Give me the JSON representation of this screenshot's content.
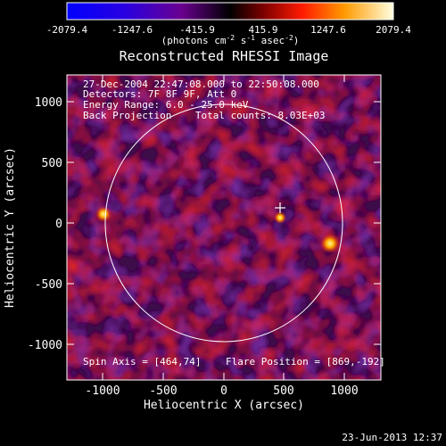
{
  "colorbar": {
    "ticks": [
      "-2079.4",
      "-1247.6",
      "-415.9",
      "415.9",
      "1247.6",
      "2079.4"
    ],
    "units_main": "(photons cm",
    "units_exp1": "-2",
    "units_mid": " s",
    "units_exp2": "-1",
    "units_tail": " asec",
    "units_exp3": "-2",
    "units_close": ")"
  },
  "title": "Reconstructed RHESSI Image",
  "info": {
    "line1": "27-Dec-2004 22:47:08.000 to 22:50:08.000",
    "line2": "Detectors: 7F 8F 9F, Att 0",
    "line3": "Energy Range: 6.0 - 25.0 keV",
    "line4": "Back Projection    Total counts: 8.03E+03"
  },
  "spin_axis": "Spin Axis = [464,74]",
  "flare_position": "Flare Position = [869,-192]",
  "y_axis_label": "Heliocentric Y (arcsec)",
  "x_axis_label": "Heliocentric X (arcsec)",
  "x_ticks": [
    "-1000",
    "-500",
    "0",
    "500",
    "1000"
  ],
  "y_ticks": [
    "1000",
    "500",
    "0",
    "-500",
    "-1000"
  ],
  "timestamp": "23-Jun-2013 12:37",
  "colors": {
    "background": "#000000",
    "plot_bg": "#4b0a55",
    "hot": "#ff3b14",
    "limb": "#ffffff"
  }
}
